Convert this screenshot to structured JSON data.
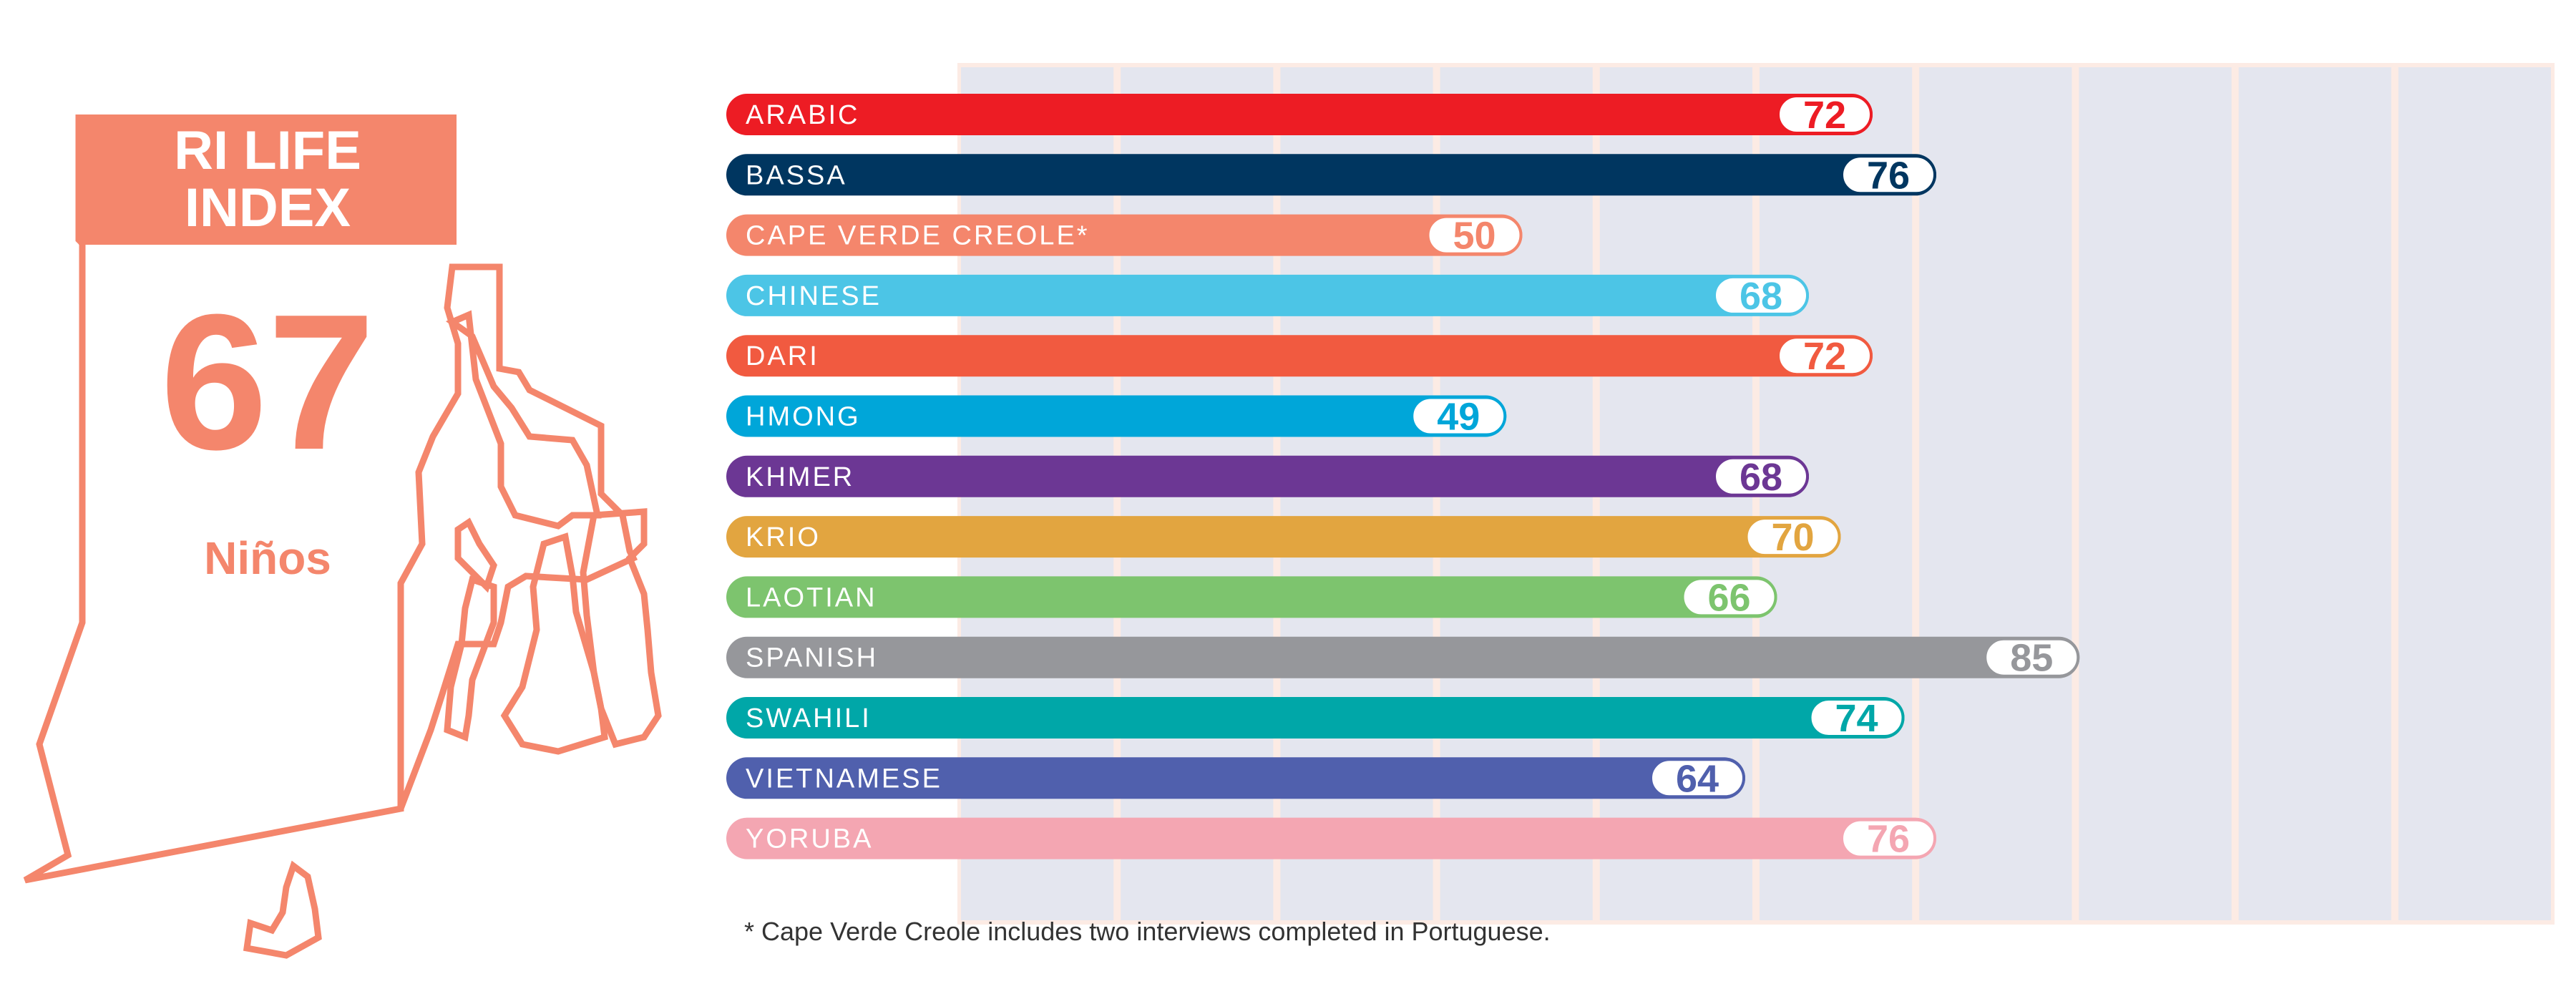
{
  "index_box": {
    "title_line1": "RI LIFE",
    "title_line2": "INDEX",
    "value": "67",
    "group": "Niños"
  },
  "footnote": "* Cape Verde Creole includes two interviews completed in Portuguese.",
  "colors": {
    "accent": "#f4866c",
    "grid_column": "#e4e6ef",
    "grid_divider": "#fcebe4"
  },
  "chart_data": {
    "type": "bar",
    "orientation": "horizontal",
    "categories": [
      "ARABIC",
      "BASSA",
      "CAPE VERDE CREOLE*",
      "CHINESE",
      "DARI",
      "HMONG",
      "KHMER",
      "KRIO",
      "LAOTIAN",
      "SPANISH",
      "SWAHILI",
      "VIETNAMESE",
      "YORUBA"
    ],
    "values": [
      72,
      76,
      50,
      68,
      72,
      49,
      68,
      70,
      66,
      85,
      74,
      64,
      76
    ],
    "colors": [
      "#ed1c24",
      "#003660",
      "#f4866c",
      "#4cc5e6",
      "#f15a40",
      "#00a6d9",
      "#6c3794",
      "#e2a540",
      "#7dc46e",
      "#96979b",
      "#00a7a8",
      "#5060ad",
      "#f4a6b2"
    ],
    "xlim": [
      0,
      100
    ],
    "grid": true,
    "title": "",
    "xlabel": "",
    "ylabel": ""
  }
}
